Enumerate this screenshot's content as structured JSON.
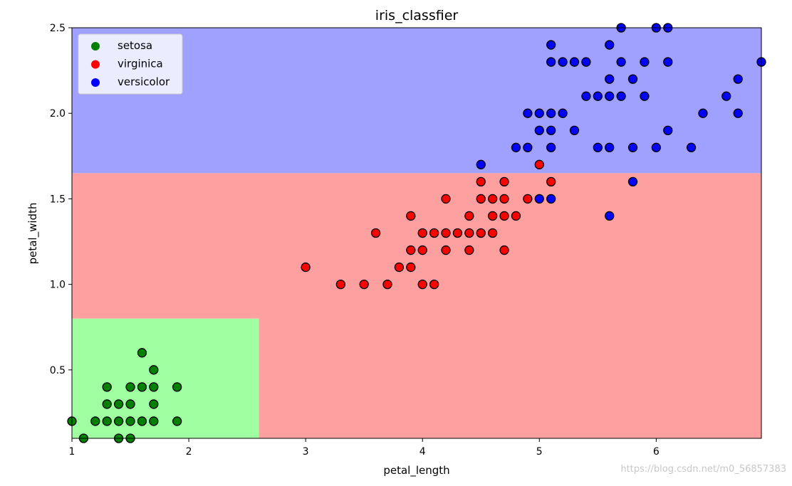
{
  "chart_data": {
    "type": "scatter",
    "title": "iris_classfier",
    "xlabel": "petal_length",
    "ylabel": "petal_width",
    "xlim": [
      1.0,
      6.9
    ],
    "ylim": [
      0.1,
      2.5
    ],
    "xticks": [
      1,
      2,
      3,
      4,
      5,
      6
    ],
    "yticks": [
      0.5,
      1.0,
      1.5,
      2.0,
      2.5
    ],
    "xtick_labels": [
      "1",
      "2",
      "3",
      "4",
      "5",
      "6"
    ],
    "ytick_labels": [
      "0.5",
      "1.0",
      "1.5",
      "2.0",
      "2.5"
    ],
    "grid": false,
    "legend_position": "top-left",
    "decision_regions": [
      {
        "label": "setosa",
        "color": "#a0ffa0",
        "x": [
          1.0,
          2.6
        ],
        "y": [
          0.1,
          0.8
        ]
      },
      {
        "label": "virginica",
        "color": "#ffa0a0",
        "x": [
          2.6,
          6.9
        ],
        "y": [
          0.1,
          1.65
        ]
      },
      {
        "label": "virginica",
        "color": "#ffa0a0",
        "x": [
          1.0,
          2.6
        ],
        "y": [
          0.8,
          1.65
        ]
      },
      {
        "label": "versicolor",
        "color": "#a0a0ff",
        "x": [
          1.0,
          6.9
        ],
        "y": [
          1.65,
          2.5
        ]
      }
    ],
    "series": [
      {
        "name": "setosa",
        "color": "#008000",
        "points": [
          [
            1.0,
            0.2
          ],
          [
            1.1,
            0.1
          ],
          [
            1.2,
            0.2
          ],
          [
            1.3,
            0.2
          ],
          [
            1.3,
            0.3
          ],
          [
            1.3,
            0.4
          ],
          [
            1.4,
            0.1
          ],
          [
            1.4,
            0.2
          ],
          [
            1.4,
            0.3
          ],
          [
            1.5,
            0.1
          ],
          [
            1.5,
            0.2
          ],
          [
            1.5,
            0.3
          ],
          [
            1.5,
            0.4
          ],
          [
            1.6,
            0.2
          ],
          [
            1.6,
            0.4
          ],
          [
            1.6,
            0.6
          ],
          [
            1.7,
            0.2
          ],
          [
            1.7,
            0.3
          ],
          [
            1.7,
            0.4
          ],
          [
            1.7,
            0.5
          ],
          [
            1.9,
            0.2
          ],
          [
            1.9,
            0.4
          ]
        ]
      },
      {
        "name": "virginica",
        "color": "#ff0000",
        "points": [
          [
            3.0,
            1.1
          ],
          [
            3.3,
            1.0
          ],
          [
            3.5,
            1.0
          ],
          [
            3.6,
            1.3
          ],
          [
            3.7,
            1.0
          ],
          [
            3.8,
            1.1
          ],
          [
            3.9,
            1.1
          ],
          [
            3.9,
            1.2
          ],
          [
            3.9,
            1.4
          ],
          [
            4.0,
            1.0
          ],
          [
            4.0,
            1.2
          ],
          [
            4.0,
            1.3
          ],
          [
            4.1,
            1.0
          ],
          [
            4.1,
            1.3
          ],
          [
            4.2,
            1.2
          ],
          [
            4.2,
            1.3
          ],
          [
            4.2,
            1.5
          ],
          [
            4.3,
            1.3
          ],
          [
            4.4,
            1.2
          ],
          [
            4.4,
            1.3
          ],
          [
            4.4,
            1.4
          ],
          [
            4.5,
            1.3
          ],
          [
            4.5,
            1.5
          ],
          [
            4.5,
            1.6
          ],
          [
            4.6,
            1.3
          ],
          [
            4.6,
            1.4
          ],
          [
            4.6,
            1.5
          ],
          [
            4.7,
            1.2
          ],
          [
            4.7,
            1.4
          ],
          [
            4.7,
            1.5
          ],
          [
            4.7,
            1.6
          ],
          [
            4.8,
            1.4
          ],
          [
            4.9,
            1.5
          ],
          [
            5.0,
            1.7
          ],
          [
            5.1,
            1.6
          ]
        ]
      },
      {
        "name": "versicolor",
        "color": "#0000ff",
        "points": [
          [
            4.5,
            1.7
          ],
          [
            4.8,
            1.8
          ],
          [
            4.9,
            1.8
          ],
          [
            4.9,
            2.0
          ],
          [
            5.0,
            1.5
          ],
          [
            5.0,
            1.9
          ],
          [
            5.0,
            2.0
          ],
          [
            5.1,
            1.5
          ],
          [
            5.1,
            1.8
          ],
          [
            5.1,
            1.9
          ],
          [
            5.1,
            2.0
          ],
          [
            5.1,
            2.3
          ],
          [
            5.1,
            2.4
          ],
          [
            5.2,
            2.0
          ],
          [
            5.2,
            2.3
          ],
          [
            5.3,
            1.9
          ],
          [
            5.3,
            2.3
          ],
          [
            5.4,
            2.1
          ],
          [
            5.4,
            2.3
          ],
          [
            5.5,
            1.8
          ],
          [
            5.5,
            2.1
          ],
          [
            5.6,
            1.4
          ],
          [
            5.6,
            1.8
          ],
          [
            5.6,
            2.1
          ],
          [
            5.6,
            2.2
          ],
          [
            5.6,
            2.4
          ],
          [
            5.7,
            2.1
          ],
          [
            5.7,
            2.3
          ],
          [
            5.7,
            2.5
          ],
          [
            5.8,
            1.6
          ],
          [
            5.8,
            1.8
          ],
          [
            5.8,
            2.2
          ],
          [
            5.9,
            2.1
          ],
          [
            5.9,
            2.3
          ],
          [
            6.0,
            1.8
          ],
          [
            6.0,
            2.5
          ],
          [
            6.1,
            1.9
          ],
          [
            6.1,
            2.3
          ],
          [
            6.1,
            2.5
          ],
          [
            6.3,
            1.8
          ],
          [
            6.4,
            2.0
          ],
          [
            6.6,
            2.1
          ],
          [
            6.7,
            2.0
          ],
          [
            6.7,
            2.2
          ],
          [
            6.9,
            2.3
          ]
        ]
      }
    ]
  },
  "watermark": "https://blog.csdn.net/m0_56857383"
}
